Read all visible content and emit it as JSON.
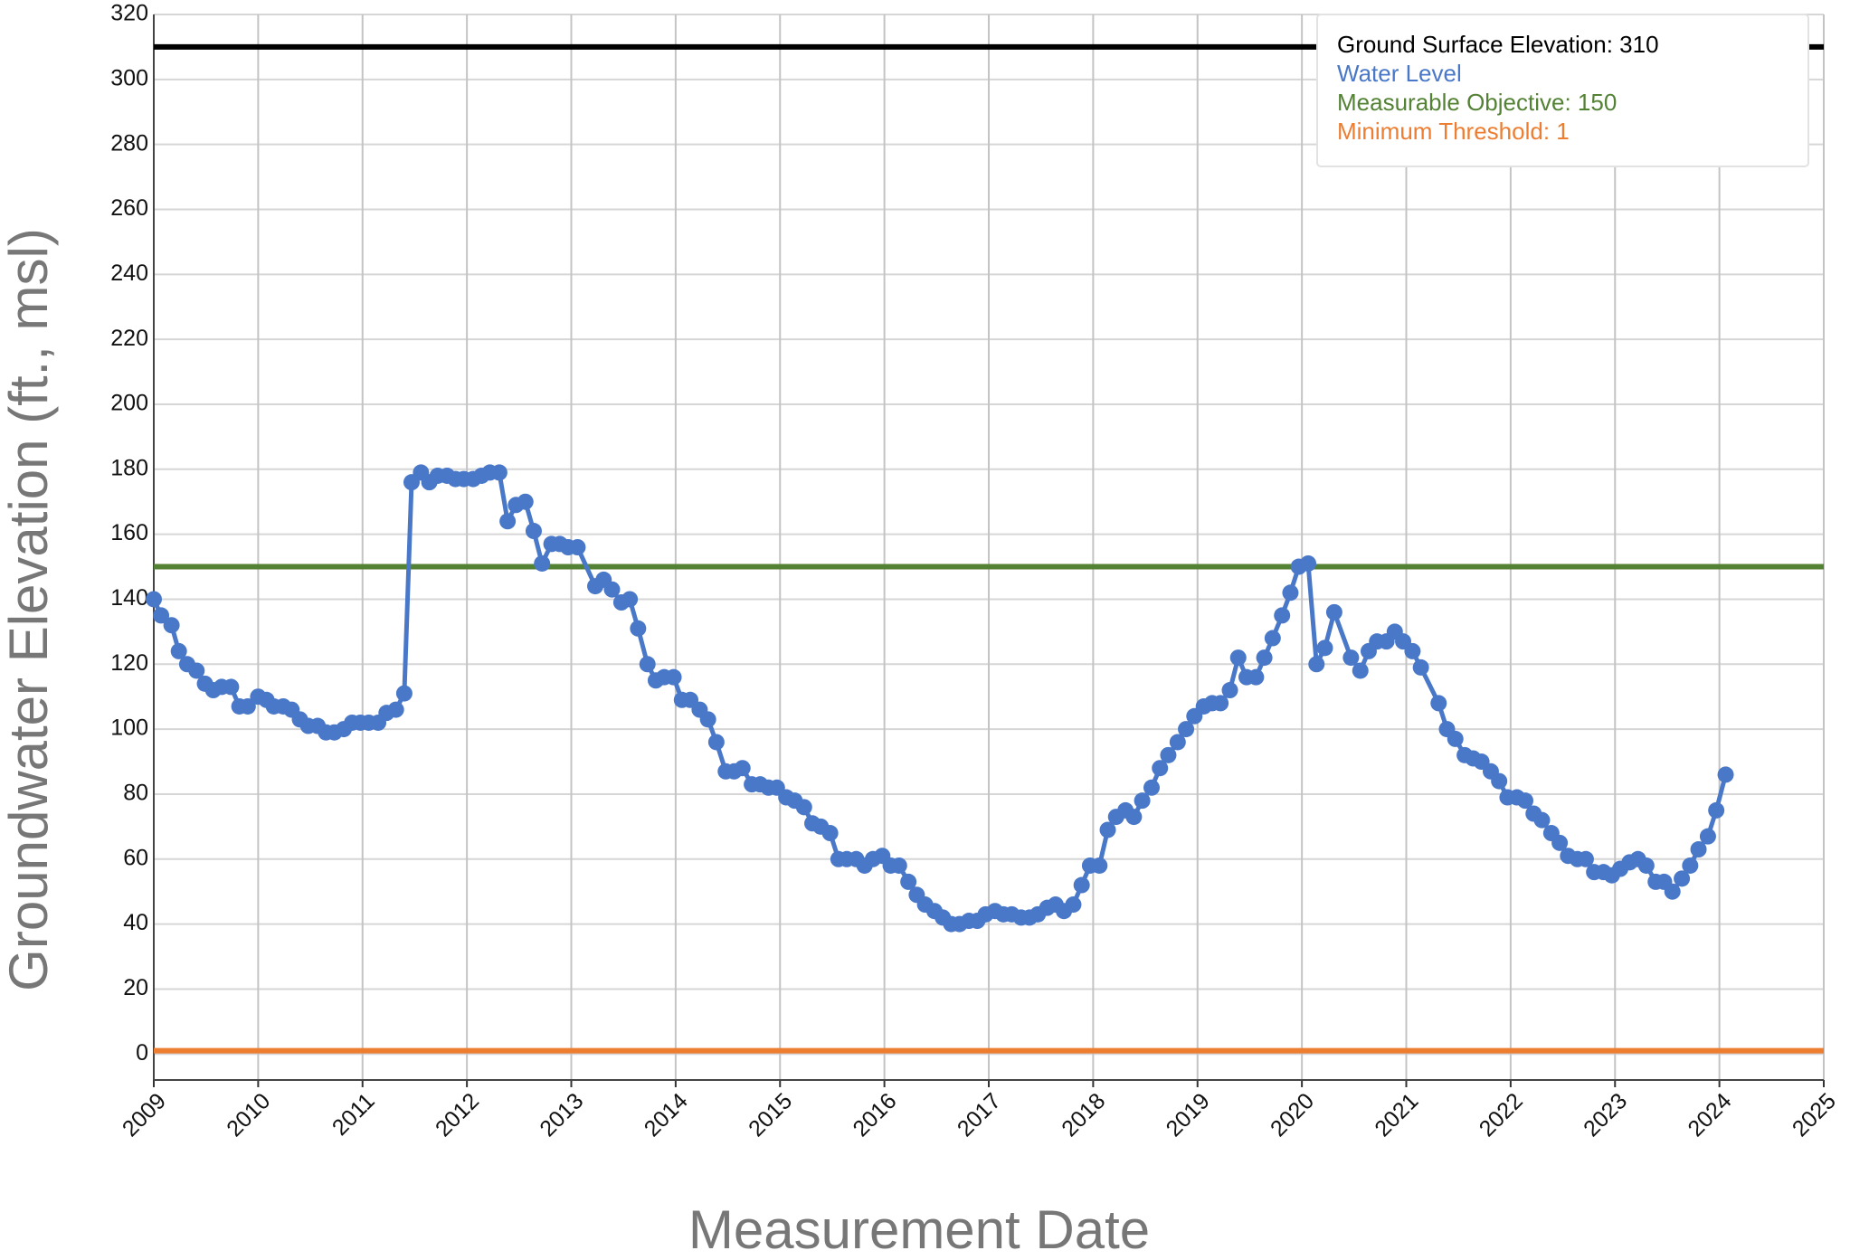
{
  "chart_data": {
    "type": "line",
    "xlabel": "Measurement Date",
    "ylabel": "Groundwater Elevation (ft., msl)",
    "xlim": [
      2009,
      2025
    ],
    "ylim": [
      -8,
      320
    ],
    "xticks": [
      2009,
      2010,
      2011,
      2012,
      2013,
      2014,
      2015,
      2016,
      2017,
      2018,
      2019,
      2020,
      2021,
      2022,
      2023,
      2024,
      2025
    ],
    "yticks": [
      0,
      20,
      40,
      60,
      80,
      100,
      120,
      140,
      160,
      180,
      200,
      220,
      240,
      260,
      280,
      300,
      320
    ],
    "grid": true,
    "legend": "top-right",
    "series": [
      {
        "name": "Ground Surface Elevation: 310",
        "color": "#000000",
        "value": 310
      },
      {
        "name": "Water Level",
        "color": "#4a78c8",
        "x": [
          2009.0,
          2009.07,
          2009.17,
          2009.24,
          2009.32,
          2009.41,
          2009.49,
          2009.57,
          2009.65,
          2009.74,
          2009.82,
          2009.9,
          2010.0,
          2010.08,
          2010.15,
          2010.24,
          2010.32,
          2010.4,
          2010.48,
          2010.57,
          2010.65,
          2010.73,
          2010.82,
          2010.9,
          2010.98,
          2011.06,
          2011.15,
          2011.23,
          2011.32,
          2011.4,
          2011.47,
          2011.56,
          2011.64,
          2011.72,
          2011.81,
          2011.89,
          2011.97,
          2012.06,
          2012.14,
          2012.22,
          2012.31,
          2012.39,
          2012.47,
          2012.56,
          2012.64,
          2012.72,
          2012.81,
          2012.89,
          2012.97,
          2013.06,
          2013.23,
          2013.31,
          2013.39,
          2013.48,
          2013.56,
          2013.64,
          2013.73,
          2013.81,
          2013.89,
          2013.98,
          2014.06,
          2014.14,
          2014.23,
          2014.31,
          2014.39,
          2014.48,
          2014.56,
          2014.64,
          2014.73,
          2014.81,
          2014.89,
          2014.97,
          2015.06,
          2015.14,
          2015.23,
          2015.31,
          2015.39,
          2015.48,
          2015.56,
          2015.64,
          2015.73,
          2015.81,
          2015.89,
          2015.98,
          2016.06,
          2016.14,
          2016.23,
          2016.31,
          2016.39,
          2016.48,
          2016.56,
          2016.64,
          2016.72,
          2016.81,
          2016.89,
          2016.97,
          2017.06,
          2017.14,
          2017.22,
          2017.31,
          2017.39,
          2017.47,
          2017.56,
          2017.64,
          2017.72,
          2017.81,
          2017.89,
          2017.97,
          2018.06,
          2018.14,
          2018.22,
          2018.31,
          2018.39,
          2018.47,
          2018.56,
          2018.64,
          2018.72,
          2018.81,
          2018.89,
          2018.97,
          2019.06,
          2019.14,
          2019.22,
          2019.31,
          2019.39,
          2019.47,
          2019.56,
          2019.64,
          2019.72,
          2019.81,
          2019.89,
          2019.97,
          2020.06,
          2020.14,
          2020.22,
          2020.31,
          2020.47,
          2020.56,
          2020.64,
          2020.72,
          2020.81,
          2020.89,
          2020.97,
          2021.06,
          2021.14,
          2021.31,
          2021.39,
          2021.47,
          2021.56,
          2021.64,
          2021.72,
          2021.81,
          2021.89,
          2021.97,
          2022.06,
          2022.14,
          2022.22,
          2022.3,
          2022.39,
          2022.47,
          2022.55,
          2022.64,
          2022.72,
          2022.8,
          2022.89,
          2022.97,
          2023.05,
          2023.14,
          2023.22,
          2023.3,
          2023.39,
          2023.47,
          2023.55,
          2023.64,
          2023.72,
          2023.8,
          2023.89,
          2023.97,
          2024.06
        ],
        "values": [
          140,
          135,
          132,
          124,
          120,
          118,
          114,
          112,
          113,
          113,
          107,
          107,
          110,
          109,
          107,
          107,
          106,
          103,
          101,
          101,
          99,
          99,
          100,
          102,
          102,
          102,
          102,
          105,
          106,
          111,
          176,
          179,
          176,
          178,
          178,
          177,
          177,
          177,
          178,
          179,
          179,
          164,
          169,
          170,
          161,
          151,
          157,
          157,
          156,
          156,
          144,
          146,
          143,
          139,
          140,
          131,
          120,
          115,
          116,
          116,
          109,
          109,
          106,
          103,
          96,
          87,
          87,
          88,
          83,
          83,
          82,
          82,
          79,
          78,
          76,
          71,
          70,
          68,
          60,
          60,
          60,
          58,
          60,
          61,
          58,
          58,
          53,
          49,
          46,
          44,
          42,
          40,
          40,
          41,
          41,
          43,
          44,
          43,
          43,
          42,
          42,
          43,
          45,
          46,
          44,
          46,
          52,
          58,
          58,
          69,
          73,
          75,
          73,
          78,
          82,
          88,
          92,
          96,
          100,
          104,
          107,
          108,
          108,
          112,
          122,
          116,
          116,
          122,
          128,
          135,
          142,
          150,
          151,
          120,
          125,
          136,
          122,
          118,
          124,
          127,
          127,
          130,
          127,
          124,
          119,
          108,
          100,
          97,
          92,
          91,
          90,
          87,
          84,
          79,
          79,
          78,
          74,
          72,
          68,
          65,
          61,
          60,
          60,
          56,
          56,
          55,
          57,
          59,
          60,
          58,
          53,
          53,
          50,
          54,
          58,
          63,
          67,
          75,
          86
        ]
      },
      {
        "name": "Measurable Objective: 150",
        "color": "#548235",
        "value": 150
      },
      {
        "name": "Minimum Threshold: 1",
        "color": "#ed7d31",
        "value": 1
      }
    ]
  }
}
